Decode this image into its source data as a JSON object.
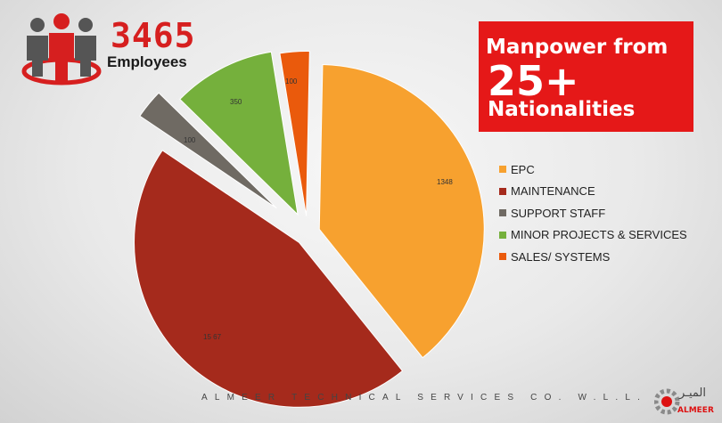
{
  "header": {
    "employee_count": "3465",
    "employee_label": "Employees",
    "nationalities_line1": "Manpower from",
    "nationalities_big": "25+",
    "nationalities_line2": "Nationalities"
  },
  "chart_data": {
    "type": "pie",
    "title": "",
    "slices": [
      {
        "name": "EPC",
        "value": 1348,
        "label": "1348",
        "color": "#f7a12f"
      },
      {
        "name": "MAINTENANCE",
        "value": 1567,
        "label": "15 67",
        "color": "#a52a1c"
      },
      {
        "name": "SUPPORT STAFF",
        "value": 100,
        "label": "100",
        "color": "#6f6a63"
      },
      {
        "name": "MINOR PROJECTS & SERVICES",
        "value": 350,
        "label": "350",
        "color": "#75b03c"
      },
      {
        "name": "SALES/ SYSTEMS",
        "value": 100,
        "label": "100",
        "color": "#ea5a0c"
      }
    ],
    "legend_position": "right"
  },
  "footer": {
    "company": "ALMEER TECHNICAL SERVICES CO. W.L.L."
  },
  "logo": {
    "arabic": "الميـر",
    "english": "ALMEER"
  },
  "colors": {
    "brand_red": "#e51818",
    "accent_red": "#d61f1f"
  }
}
